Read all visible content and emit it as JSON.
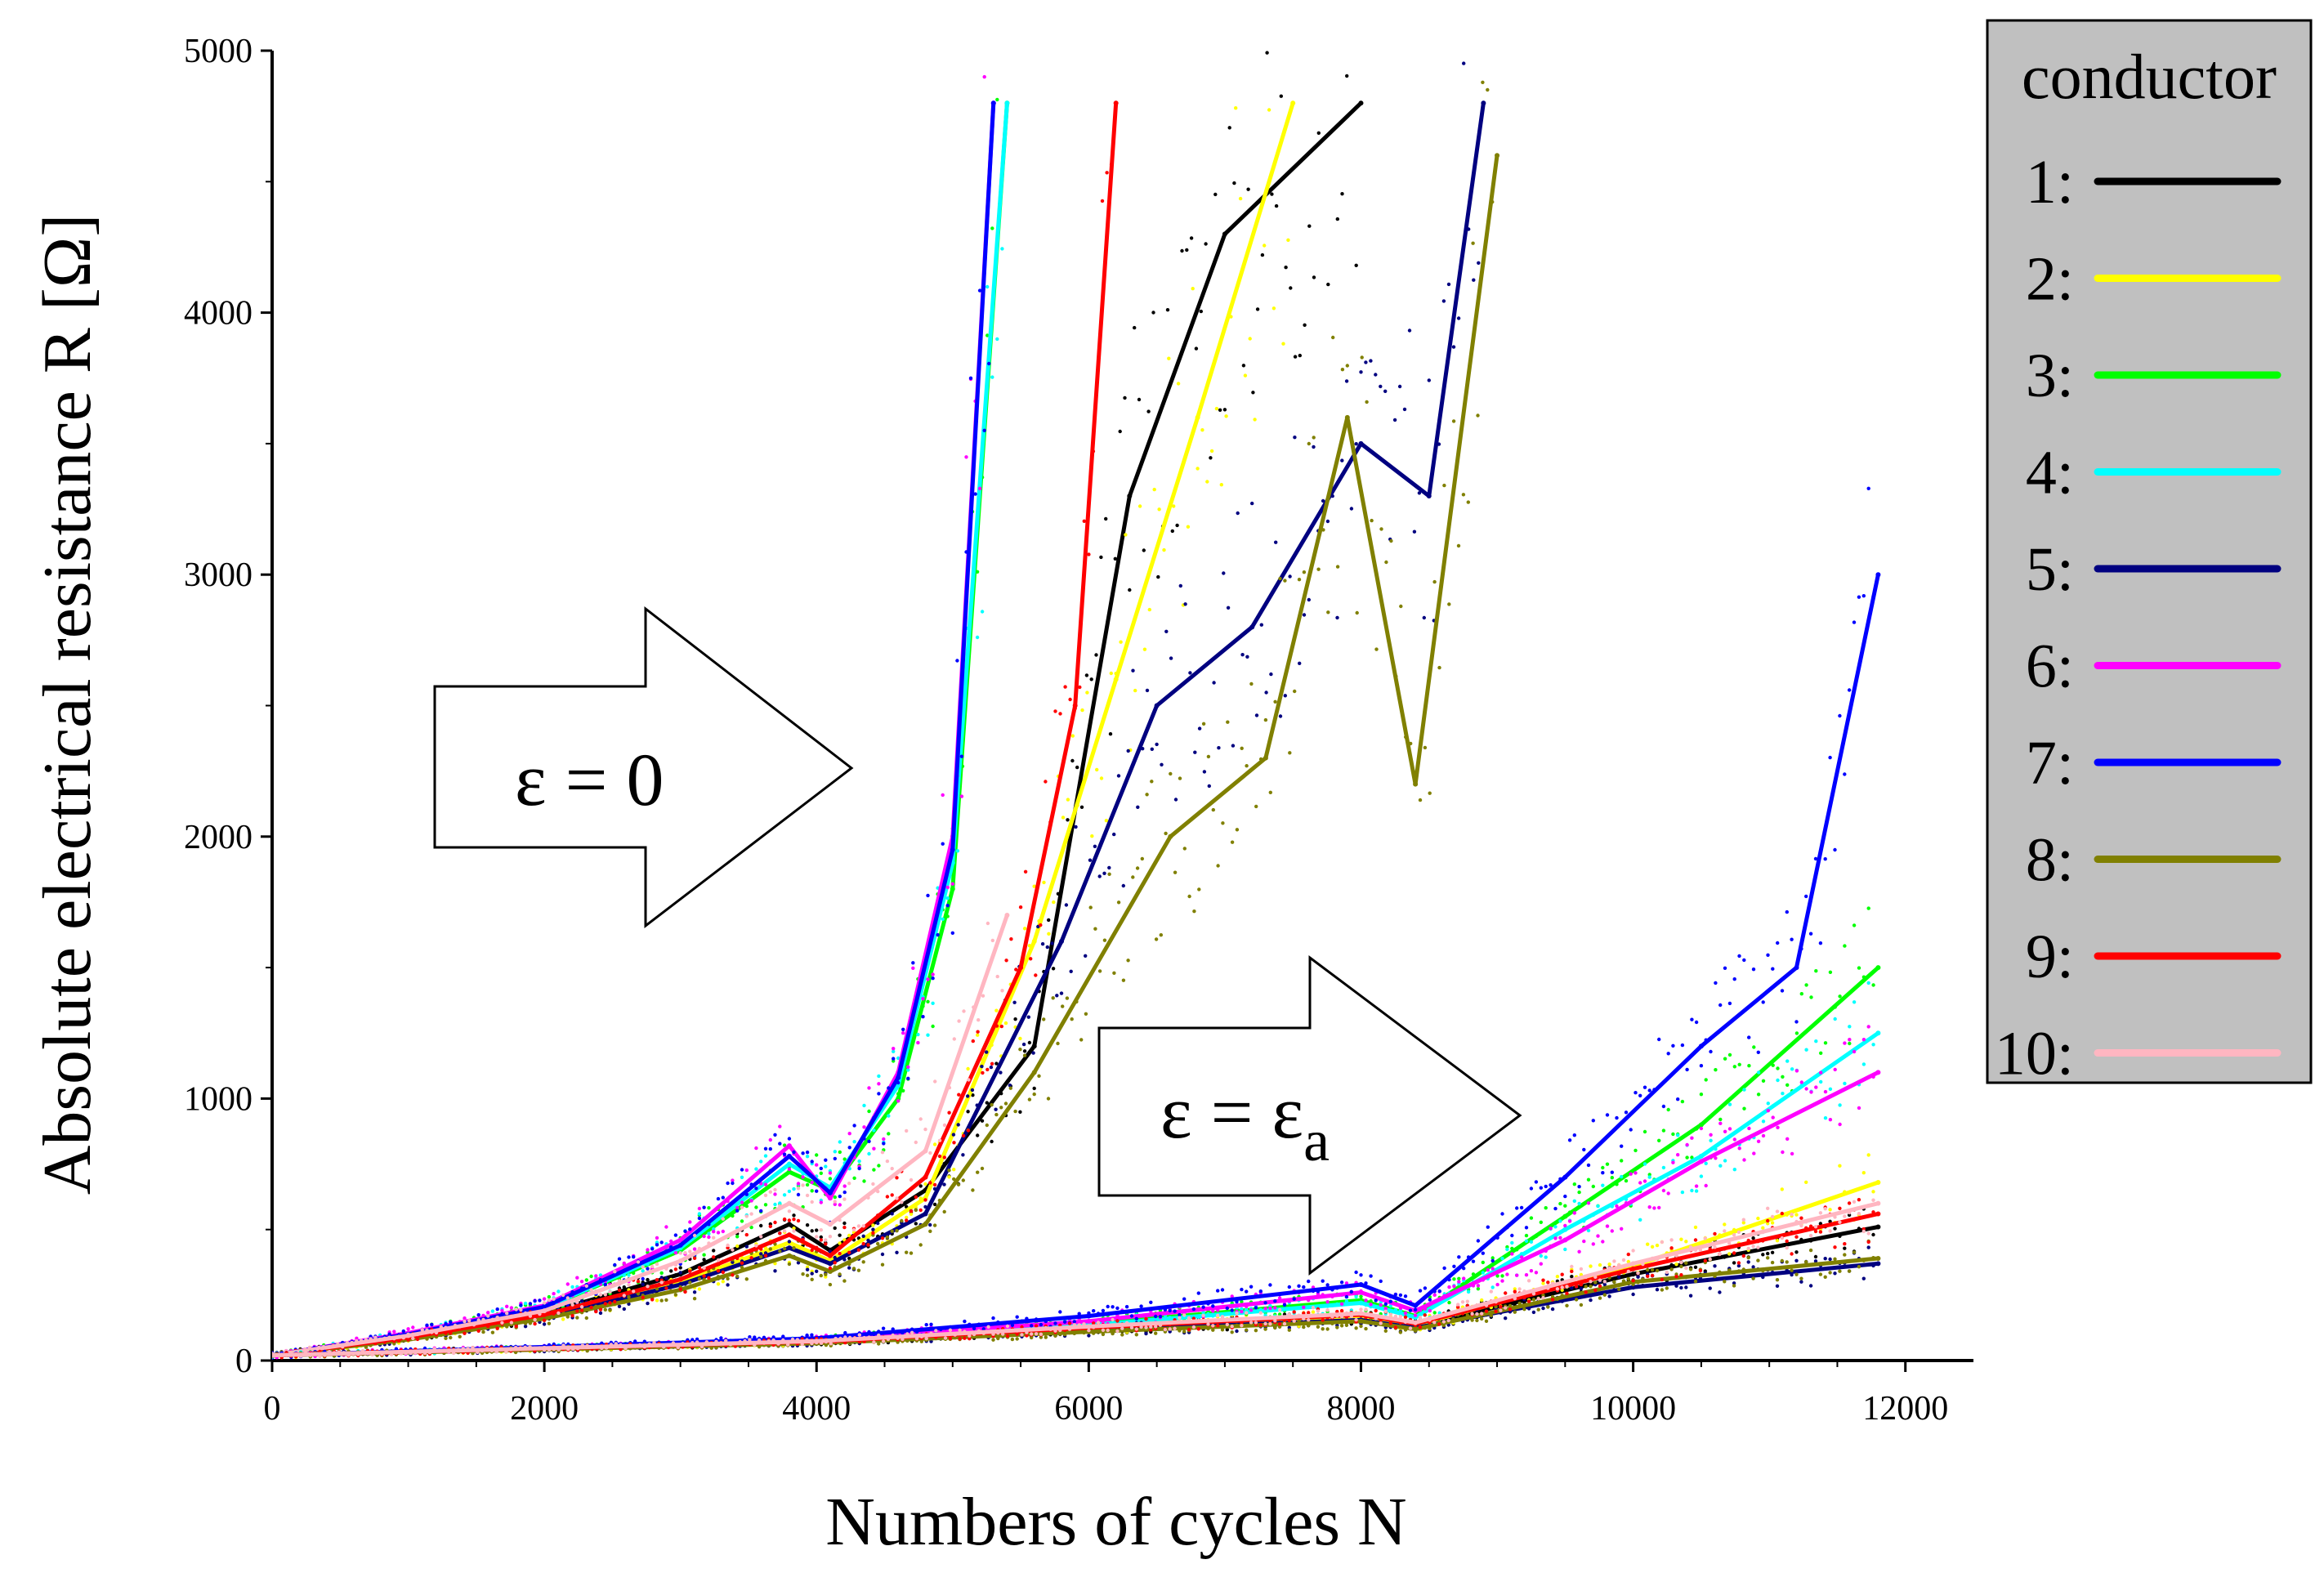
{
  "chart_data": {
    "type": "scatter",
    "title": "",
    "xlabel": "Numbers of cycles N",
    "ylabel": "Absolute electrical resistance R [Ω]",
    "xlim": [
      0,
      12500
    ],
    "ylim": [
      0,
      5000
    ],
    "x_ticks": [
      0,
      2000,
      4000,
      6000,
      8000,
      10000,
      12000
    ],
    "y_ticks": [
      0,
      1000,
      2000,
      3000,
      4000,
      5000
    ],
    "grid": false,
    "legend": {
      "title": "conductor",
      "placement": "right",
      "entries": [
        {
          "label": "1:",
          "color": "#000000"
        },
        {
          "label": "2:",
          "color": "#ffff00"
        },
        {
          "label": "3:",
          "color": "#00ff00"
        },
        {
          "label": "4:",
          "color": "#00ffff"
        },
        {
          "label": "5:",
          "color": "#000080"
        },
        {
          "label": "6:",
          "color": "#ff00ff"
        },
        {
          "label": "7:",
          "color": "#0000ff"
        },
        {
          "label": "8:",
          "color": "#808000"
        },
        {
          "label": "9:",
          "color": "#ff0000"
        },
        {
          "label": "10:",
          "color": "#ffb6c1"
        }
      ]
    },
    "annotations": [
      {
        "text": "ε = 0",
        "group": "zero_strain"
      },
      {
        "text": "ε = ε",
        "subscript": "a",
        "group": "strained"
      }
    ],
    "groups": {
      "zero_strain": {
        "description_series": [
          {
            "name": "1",
            "color": "#000000",
            "x": [
              0,
              1000,
              2000,
              3000,
              3800,
              4100,
              4800,
              5600,
              6300,
              7000,
              8000
            ],
            "y": [
              20,
              90,
              180,
              330,
              520,
              420,
              650,
              1200,
              3300,
              4300,
              4800
            ]
          },
          {
            "name": "2",
            "color": "#ffff00",
            "x": [
              0,
              1000,
              2000,
              3000,
              3800,
              4100,
              4800,
              5600,
              6200,
              6800,
              7500
            ],
            "y": [
              20,
              85,
              170,
              300,
              450,
              380,
              620,
              1600,
              2600,
              3600,
              4800
            ]
          },
          {
            "name": "3",
            "color": "#00ff00",
            "x": [
              0,
              1000,
              2000,
              3000,
              3800,
              4100,
              4600,
              5000,
              5400
            ],
            "y": [
              20,
              100,
              200,
              420,
              720,
              650,
              1000,
              1800,
              4800
            ]
          },
          {
            "name": "4",
            "color": "#00ffff",
            "x": [
              0,
              1000,
              2000,
              3000,
              3800,
              4100,
              4600,
              5000,
              5400
            ],
            "y": [
              20,
              100,
              200,
              430,
              750,
              660,
              1050,
              1900,
              4800
            ]
          },
          {
            "name": "5",
            "color": "#000080",
            "x": [
              0,
              1000,
              2000,
              3000,
              3800,
              4100,
              4800,
              5800,
              6500,
              7200,
              8000,
              8500,
              8900
            ],
            "y": [
              20,
              85,
              165,
              290,
              430,
              370,
              560,
              1600,
              2500,
              2800,
              3500,
              3300,
              4800
            ]
          },
          {
            "name": "6",
            "color": "#ff00ff",
            "x": [
              0,
              1000,
              2000,
              3000,
              3800,
              4100,
              4600,
              5000,
              5300
            ],
            "y": [
              20,
              105,
              210,
              460,
              820,
              620,
              1100,
              2000,
              4800
            ]
          },
          {
            "name": "7",
            "color": "#0000ff",
            "x": [
              0,
              1000,
              2000,
              3000,
              3800,
              4100,
              4600,
              5000,
              5300
            ],
            "y": [
              20,
              100,
              205,
              440,
              780,
              640,
              1080,
              1950,
              4800
            ]
          },
          {
            "name": "8",
            "color": "#808000",
            "x": [
              0,
              1000,
              2000,
              3000,
              3800,
              4100,
              4800,
              5600,
              6600,
              7300,
              7900,
              8400,
              9000
            ],
            "y": [
              20,
              80,
              160,
              270,
              400,
              340,
              520,
              1100,
              2000,
              2300,
              3600,
              2200,
              4600
            ]
          },
          {
            "name": "9",
            "color": "#ff0000",
            "x": [
              0,
              1000,
              2000,
              3000,
              3800,
              4100,
              4800,
              5500,
              5900,
              6200
            ],
            "y": [
              20,
              88,
              175,
              310,
              480,
              400,
              700,
              1500,
              2500,
              4800
            ]
          },
          {
            "name": "10",
            "color": "#ffb6c1",
            "x": [
              0,
              1000,
              2000,
              3000,
              3800,
              4100,
              4800,
              5400
            ],
            "y": [
              20,
              95,
              190,
              380,
              600,
              520,
              800,
              1700
            ]
          }
        ]
      },
      "strained": {
        "description_series": [
          {
            "name": "1",
            "color": "#000000",
            "x": [
              0,
              2000,
              4000,
              6000,
              8000,
              8400,
              10000,
              11800
            ],
            "y": [
              20,
              45,
              70,
              120,
              165,
              130,
              330,
              510
            ]
          },
          {
            "name": "2",
            "color": "#ffff00",
            "x": [
              0,
              2000,
              4000,
              6000,
              8000,
              8400,
              10000,
              11800
            ],
            "y": [
              20,
              46,
              72,
              125,
              170,
              135,
              360,
              680
            ]
          },
          {
            "name": "3",
            "color": "#00ff00",
            "x": [
              0,
              2000,
              4000,
              6000,
              8000,
              8400,
              9500,
              10500,
              11800
            ],
            "y": [
              20,
              48,
              78,
              140,
              230,
              170,
              550,
              900,
              1500
            ]
          },
          {
            "name": "4",
            "color": "#00ffff",
            "x": [
              0,
              2000,
              4000,
              6000,
              8000,
              8400,
              9500,
              10500,
              11800
            ],
            "y": [
              20,
              48,
              76,
              135,
              220,
              165,
              500,
              780,
              1250
            ]
          },
          {
            "name": "5",
            "color": "#000080",
            "x": [
              0,
              2000,
              4000,
              6000,
              8000,
              8400,
              10000,
              11800
            ],
            "y": [
              20,
              44,
              68,
              115,
              155,
              125,
              280,
              370
            ]
          },
          {
            "name": "6",
            "color": "#ff00ff",
            "x": [
              0,
              2000,
              4000,
              6000,
              8000,
              8400,
              9500,
              10500,
              11800
            ],
            "y": [
              20,
              50,
              80,
              150,
              260,
              190,
              460,
              760,
              1100
            ]
          },
          {
            "name": "7",
            "color": "#0000ff",
            "x": [
              0,
              2000,
              4000,
              6000,
              8000,
              8400,
              9500,
              10500,
              11200,
              11800
            ],
            "y": [
              20,
              52,
              85,
              170,
              290,
              210,
              700,
              1200,
              1500,
              3000
            ]
          },
          {
            "name": "8",
            "color": "#808000",
            "x": [
              0,
              2000,
              4000,
              6000,
              8000,
              8400,
              10000,
              11800
            ],
            "y": [
              20,
              42,
              66,
              110,
              150,
              120,
              300,
              390
            ]
          },
          {
            "name": "9",
            "color": "#ff0000",
            "x": [
              0,
              2000,
              4000,
              6000,
              8000,
              8400,
              10000,
              11800
            ],
            "y": [
              20,
              46,
              72,
              125,
              175,
              140,
              350,
              560
            ]
          },
          {
            "name": "10",
            "color": "#ffb6c1",
            "x": [
              0,
              2000,
              4000,
              6000,
              8000,
              8400,
              10000,
              11800
            ],
            "y": [
              20,
              47,
              74,
              130,
              180,
              145,
              370,
              600
            ]
          }
        ]
      }
    }
  }
}
